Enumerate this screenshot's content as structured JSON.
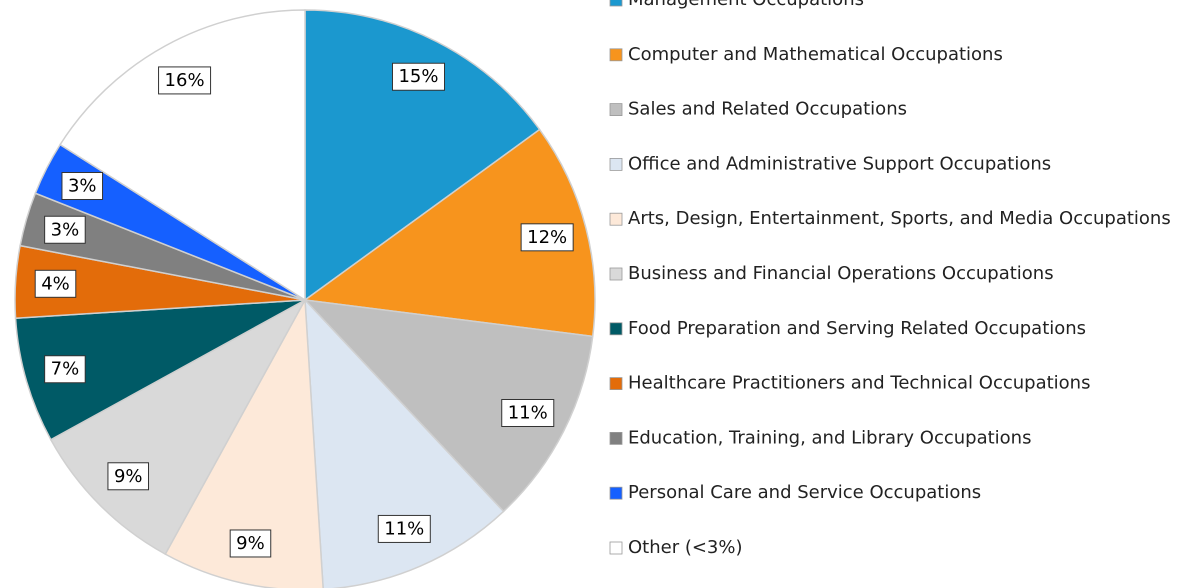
{
  "chart_data": {
    "type": "pie",
    "categories": [
      "Management Occupations",
      "Computer and Mathematical Occupations",
      "Sales and Related Occupations",
      "Office and Administrative Support Occupations",
      "Arts, Design, Entertainment, Sports, and Media Occupations",
      "Business and Financial Operations Occupations",
      "Food Preparation and Serving Related Occupations",
      "Healthcare Practitioners and Technical Occupations",
      "Education, Training, and Library Occupations",
      "Personal Care and Service Occupations",
      "Other (<3%)"
    ],
    "values": [
      15,
      12,
      11,
      11,
      9,
      9,
      7,
      4,
      3,
      3,
      16
    ],
    "value_labels": [
      "15%",
      "12%",
      "11%",
      "11%",
      "9%",
      "9%",
      "7%",
      "4%",
      "3%",
      "3%",
      "16%"
    ],
    "colors": [
      "#1b98cf",
      "#f7941d",
      "#bfbfbf",
      "#dce6f2",
      "#fde9d9",
      "#d9d9d9",
      "#005a66",
      "#e36c0a",
      "#808080",
      "#1560ff",
      "#ffffff"
    ],
    "legend": "right"
  }
}
